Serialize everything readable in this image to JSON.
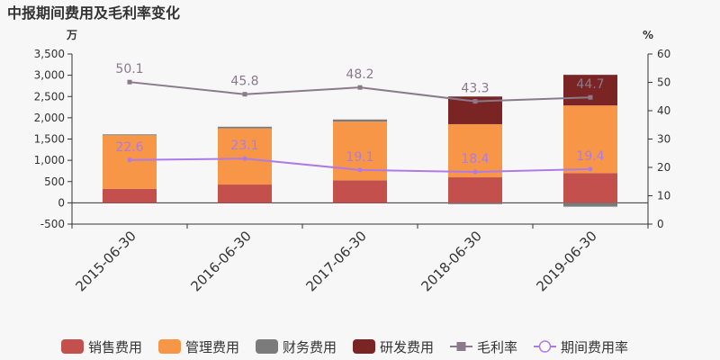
{
  "title": "中报期间费用及毛利率变化",
  "left_unit": "万",
  "right_unit": "%",
  "colors": {
    "sales": "#c4504d",
    "admin": "#f79646",
    "finance": "#7b7b7b",
    "rd": "#7a2424",
    "gross": "#8a7a8c",
    "period": "#b07ae6"
  },
  "chart_data": {
    "type": "bar",
    "title": "中报期间费用及毛利率变化",
    "categories": [
      "2015-06-30",
      "2016-06-30",
      "2017-06-30",
      "2018-06-30",
      "2019-06-30"
    ],
    "stacked": true,
    "y_left": {
      "unit": "万",
      "ylim": [
        -500,
        3500
      ],
      "ticks": [
        -500,
        0,
        500,
        1000,
        1500,
        2000,
        2500,
        3000,
        3500
      ]
    },
    "y_right": {
      "unit": "%",
      "ylim": [
        0,
        60
      ],
      "ticks": [
        0,
        10,
        20,
        30,
        40,
        50,
        60
      ]
    },
    "series": [
      {
        "name": "销售费用",
        "key": "sales",
        "type": "bar",
        "axis": "left",
        "values": [
          330,
          430,
          530,
          600,
          700
        ]
      },
      {
        "name": "管理费用",
        "key": "admin",
        "type": "bar",
        "axis": "left",
        "values": [
          1260,
          1320,
          1380,
          1250,
          1590
        ]
      },
      {
        "name": "财务费用",
        "key": "finance",
        "type": "bar",
        "axis": "left",
        "values": [
          20,
          40,
          50,
          -30,
          -90
        ]
      },
      {
        "name": "研发费用",
        "key": "rd",
        "type": "bar",
        "axis": "left",
        "values": [
          0,
          0,
          0,
          650,
          720
        ]
      },
      {
        "name": "毛利率",
        "key": "gross",
        "type": "line",
        "axis": "right",
        "marker": "square",
        "values": [
          50.1,
          45.8,
          48.2,
          43.3,
          44.7
        ],
        "labels": [
          "50.1",
          "45.8",
          "48.2",
          "43.3",
          "44.7"
        ]
      },
      {
        "name": "期间费用率",
        "key": "period",
        "type": "line",
        "axis": "right",
        "marker": "circle",
        "values": [
          22.6,
          23.1,
          19.1,
          18.4,
          19.4
        ],
        "labels": [
          "22.6",
          "23.1",
          "19.1",
          "18.4",
          "19.4"
        ]
      }
    ],
    "grid": false,
    "legend": "bottom"
  }
}
